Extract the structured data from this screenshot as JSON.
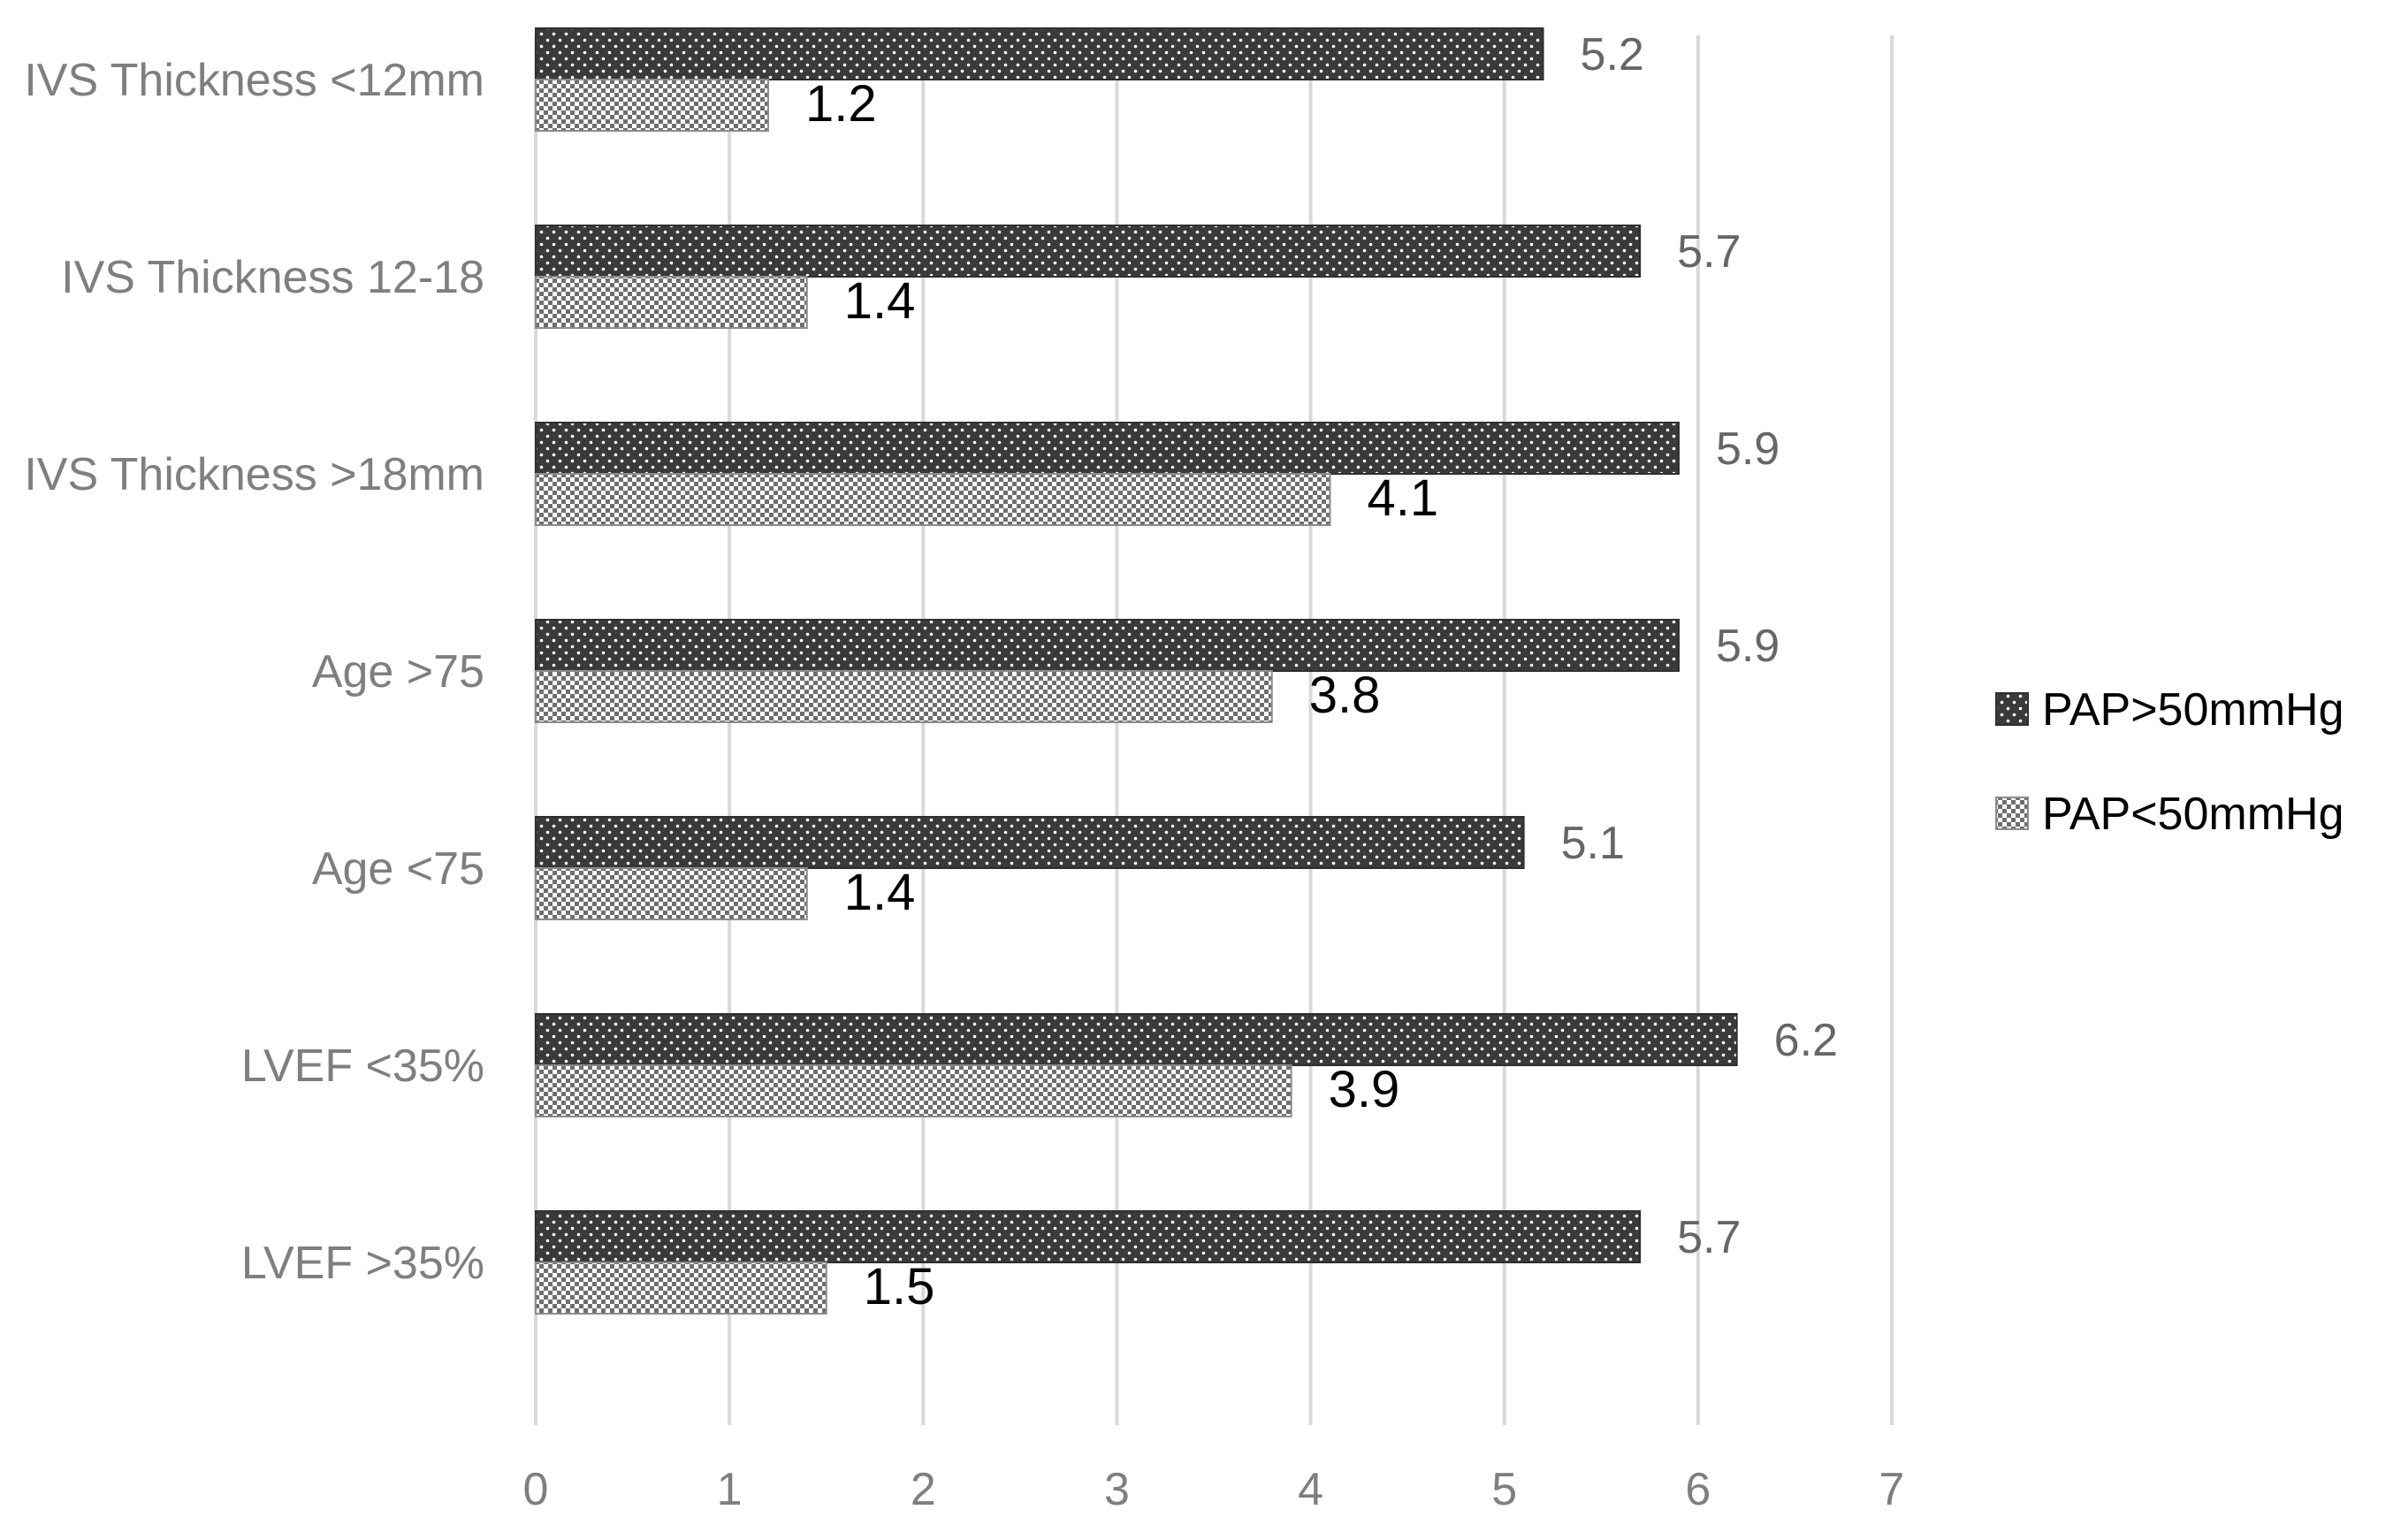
{
  "chart_data": {
    "type": "bar",
    "orientation": "horizontal",
    "categories": [
      "IVS Thickness <12mm",
      "IVS Thickness 12-18",
      "IVS Thickness >18mm",
      "Age >75",
      "Age <75",
      "LVEF <35%",
      "LVEF >35%"
    ],
    "series": [
      {
        "name": "PAP>50mmHg",
        "values": [
          5.2,
          5.7,
          5.9,
          5.9,
          5.1,
          6.2,
          5.7
        ],
        "color": "#3a3a3a",
        "pattern": "dark-dotted"
      },
      {
        "name": "PAP<50mmHg",
        "values": [
          1.2,
          1.4,
          4.1,
          3.8,
          1.4,
          3.9,
          1.5
        ],
        "color": "#d9d9d9",
        "pattern": "light-checkered"
      }
    ],
    "xlim": [
      0,
      7
    ],
    "xticks": [
      "0",
      "1",
      "2",
      "3",
      "4",
      "5",
      "6",
      "7"
    ],
    "grid": "vertical",
    "legend": "right",
    "title": "",
    "xlabel": "",
    "ylabel": ""
  }
}
